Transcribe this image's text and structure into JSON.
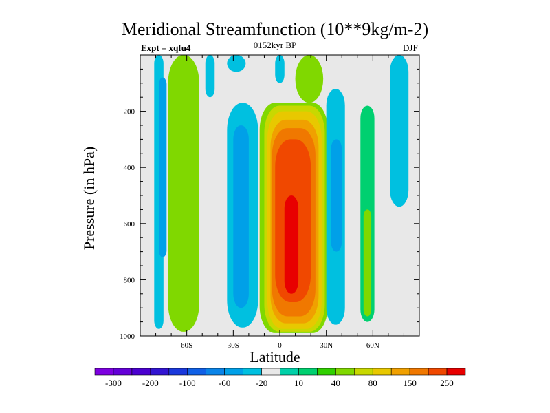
{
  "chart_data": {
    "type": "heatmap",
    "title": "Meridional Streamfunction (10**9kg/m-2)",
    "subtitle_left": "Expt = xqfu4",
    "subtitle_center": "0152kyr BP",
    "subtitle_right": "DJF",
    "xlabel": "Latitude",
    "ylabel": "Pressure (in hPa)",
    "xlim": [
      -90,
      90
    ],
    "ylim": [
      1000,
      0
    ],
    "x_ticks": [
      {
        "value": -60,
        "label": "60S"
      },
      {
        "value": -30,
        "label": "30S"
      },
      {
        "value": 0,
        "label": "0"
      },
      {
        "value": 30,
        "label": "30N"
      },
      {
        "value": 60,
        "label": "60N"
      }
    ],
    "y_ticks": [
      {
        "value": 200,
        "label": "200"
      },
      {
        "value": 400,
        "label": "400"
      },
      {
        "value": 600,
        "label": "600"
      },
      {
        "value": 800,
        "label": "800"
      },
      {
        "value": 1000,
        "label": "1000"
      }
    ],
    "colorbar": {
      "levels": [
        -300,
        -250,
        -200,
        -150,
        -100,
        -80,
        -60,
        -40,
        -20,
        -10,
        10,
        20,
        40,
        60,
        80,
        100,
        150,
        200,
        250,
        300
      ],
      "tick_labels": [
        "-300",
        "-200",
        "-100",
        "-60",
        "-20",
        "10",
        "40",
        "80",
        "150",
        "250"
      ],
      "colors": [
        "#7d00e0",
        "#6400d8",
        "#4b00d0",
        "#3214d2",
        "#1a38dc",
        "#1060e6",
        "#0a84e8",
        "#00a0e8",
        "#00c0e0",
        "#e8e8e8",
        "#00d0a8",
        "#00d070",
        "#30d000",
        "#80d800",
        "#c8d800",
        "#e8c800",
        "#f0a000",
        "#f07800",
        "#f04800",
        "#e80000"
      ],
      "background": "#e8e8e8"
    },
    "cells": [
      {
        "lat": [
          -81,
          -75
        ],
        "p": [
          0,
          975
        ],
        "value": -20
      },
      {
        "lat": [
          -78,
          -73
        ],
        "p": [
          80,
          720
        ],
        "value": -40
      },
      {
        "lat": [
          -72,
          -52
        ],
        "p": [
          0,
          985
        ],
        "value": 40
      },
      {
        "lat": [
          -48,
          -42
        ],
        "p": [
          0,
          150
        ],
        "value": -20
      },
      {
        "lat": [
          -34,
          -22
        ],
        "p": [
          0,
          60
        ],
        "value": -20
      },
      {
        "lat": [
          -34,
          -14
        ],
        "p": [
          170,
          970
        ],
        "value": -20
      },
      {
        "lat": [
          -30,
          -20
        ],
        "p": [
          250,
          900
        ],
        "value": -40
      },
      {
        "lat": [
          -3,
          3
        ],
        "p": [
          0,
          100
        ],
        "value": -20
      },
      {
        "lat": [
          -13,
          31
        ],
        "p": [
          170,
          990
        ],
        "value": 40
      },
      {
        "lat": [
          -10,
          29
        ],
        "p": [
          180,
          985
        ],
        "value": 60
      },
      {
        "lat": [
          -8,
          27
        ],
        "p": [
          200,
          975
        ],
        "value": 80
      },
      {
        "lat": [
          -6,
          25
        ],
        "p": [
          230,
          955
        ],
        "value": 100
      },
      {
        "lat": [
          -5,
          23
        ],
        "p": [
          260,
          930
        ],
        "value": 150
      },
      {
        "lat": [
          -3,
          20
        ],
        "p": [
          300,
          880
        ],
        "value": 200
      },
      {
        "lat": [
          3,
          12
        ],
        "p": [
          500,
          850
        ],
        "value": 250
      },
      {
        "lat": [
          10,
          28
        ],
        "p": [
          0,
          170
        ],
        "value": 40
      },
      {
        "lat": [
          30,
          42
        ],
        "p": [
          120,
          960
        ],
        "value": -20
      },
      {
        "lat": [
          33,
          40
        ],
        "p": [
          300,
          700
        ],
        "value": -40
      },
      {
        "lat": [
          52,
          61
        ],
        "p": [
          180,
          950
        ],
        "value": 10
      },
      {
        "lat": [
          54,
          59
        ],
        "p": [
          550,
          930
        ],
        "value": 40
      },
      {
        "lat": [
          71,
          83
        ],
        "p": [
          0,
          540
        ],
        "value": -20
      }
    ]
  }
}
